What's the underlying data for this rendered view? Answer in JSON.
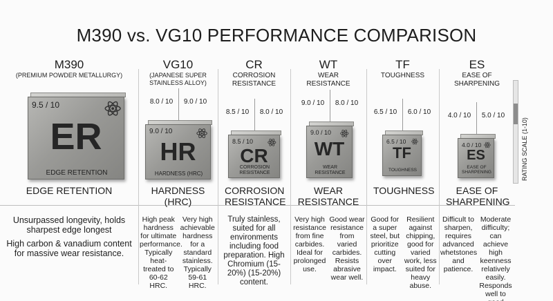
{
  "title": "M390 vs. VG10 PERFORMANCE COMPARISON",
  "rating_scale": "RATING SCALE (1-10)",
  "columns": [
    {
      "header": "M390",
      "subtitle": "(PREMIUM POWDER METALLURGY)",
      "cube_rating": "9.5 / 10",
      "cube_symbol": "ER",
      "cube_label": "EDGE RETENTION",
      "label": "EDGE RETENTION",
      "descriptions": [
        "Unsurpassed longevity, holds sharpest edge longest",
        "High carbon & vanadium content for massive wear resistance."
      ]
    },
    {
      "header": "VG10",
      "subtitle": "(JAPANESE SUPER STAINLESS ALLOY)",
      "ratings": [
        "8.0 / 10",
        "9.0 / 10"
      ],
      "cube_rating": "9.0 / 10",
      "cube_symbol": "HR",
      "cube_label": "HARDNESS (HRC)",
      "label": "HARDNESS (HRC)",
      "descriptions": [
        "High peak hardness for ultimate performance. Typically heat-treated to 60-62 HRC.",
        "Very high achievable hardness for a standard stainless. Typically 59-61 HRC."
      ]
    },
    {
      "header": "CR",
      "subtitle": "CORROSION RESISTANCE",
      "ratings": [
        "8.5 / 10",
        "8.0 / 10"
      ],
      "cube_rating": "8.5 / 10",
      "cube_symbol": "CR",
      "cube_label": "CORROSION RESISTANCE",
      "label": "CORROSION RESISTANCE",
      "descriptions": [
        "Truly stainless, suited for all environments including food preparation. High Chromium (15-20%) (15-20%) content."
      ]
    },
    {
      "header": "WT",
      "subtitle": "WEAR RESISTANCE",
      "ratings": [
        "9.0 / 10",
        "8.0 / 10"
      ],
      "cube_rating": "9.0 / 10",
      "cube_symbol": "WT",
      "cube_label": "WEAR RESISTANCE",
      "label": "WEAR RESISTANCE",
      "descriptions": [
        "Very high resistance from fine carbides. Ideal for prolonged use.",
        "Good wear resistance from varied carbides. Resists abrasive wear well."
      ]
    },
    {
      "header": "TF",
      "subtitle": "TOUGHNESS",
      "ratings": [
        "6.5 / 10",
        "6.0 / 10"
      ],
      "cube_rating": "6.5 / 10",
      "cube_symbol": "TF",
      "cube_label": "TOUGHNESS",
      "label": "TOUGHNESS",
      "descriptions": [
        "Good for a super steel, but prioritize cutting over impact.",
        "Resilient against chipping, good for varied work, less suited for heavy abuse."
      ]
    },
    {
      "header": "ES",
      "subtitle": "EASE OF SHARPENING",
      "ratings": [
        "4.0 / 10",
        "5.0 / 10"
      ],
      "cube_rating": "4.0 / 10",
      "cube_symbol": "ES",
      "cube_label": "EASE OF SHARPENING",
      "label": "EASE OF SHARPENING",
      "descriptions": [
        "Difficult to sharpen, requires advanced whetstones and patience.",
        "Moderate difficulty; can achieve high keenness relatively easily. Responds well to good technique."
      ]
    }
  ]
}
